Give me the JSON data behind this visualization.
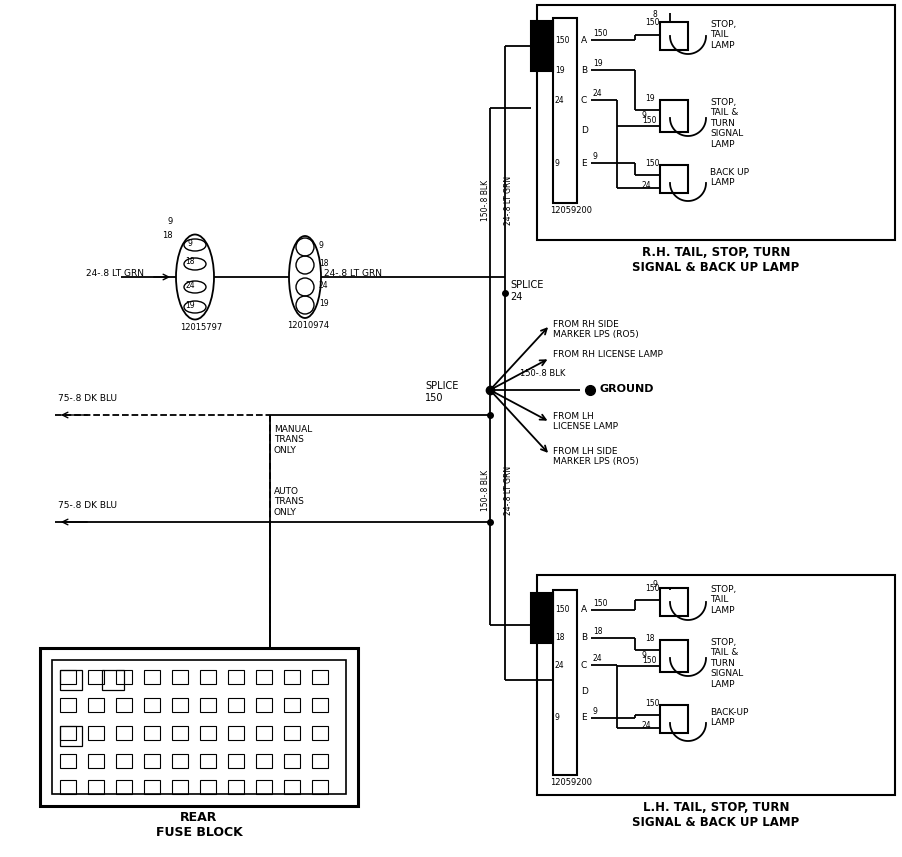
{
  "bg_color": "#ffffff",
  "rh_label": "R.H. TAIL, STOP, TURN\nSIGNAL & BACK UP LAMP",
  "lh_label": "L.H. TAIL, STOP, TURN\nSIGNAL & BACK UP LAMP",
  "fuse_label": "REAR\nFUSE BLOCK",
  "connector1_id": "12015797",
  "connector2_id": "12010974",
  "connector3_id": "12059200",
  "splice24_label": "SPLICE\n24",
  "splice150_label": "SPLICE\n150",
  "ground_label": "GROUND",
  "wire_blk": "150-.8 BLK",
  "wire_grn": "24-.8 LT GRN",
  "wire_blu": "75-.8 DK BLU",
  "manual_trans": "MANUAL\nTRANS\nONLY",
  "auto_trans": "AUTO\nTRANS\nONLY",
  "from_rh_side": "FROM RH SIDE\nMARKER LPS (RO5)",
  "from_rh_license": "FROM RH LICENSE LAMP",
  "from_lh_license": "FROM LH\nLICENSE LAMP",
  "from_lh_side": "FROM LH SIDE\nMARKER LPS (RO5)",
  "rh_stop_tail": "STOP,\nTAIL\nLAMP",
  "rh_stop_tail_turn": "STOP,\nTAIL &\nTURN\nSIGNAL\nLAMP",
  "rh_backup": "BACK UP\nLAMP",
  "lh_stop_tail": "STOP,\nTAIL\nLAMP",
  "lh_stop_tail_turn": "STOP,\nTAIL &\nTURN\nSIGNAL\nLAMP",
  "lh_backup": "BACK-UP\nLAMP",
  "rh_pins": [
    "150",
    "19",
    "24",
    "",
    "9"
  ],
  "lh_pins": [
    "150",
    "18",
    "24",
    "",
    "9"
  ],
  "pin_labels": [
    "A",
    "B",
    "C",
    "D",
    "E"
  ],
  "rh_wire_labels": [
    "150",
    "19",
    "24",
    "9"
  ],
  "lh_wire_labels": [
    "150",
    "18",
    "24",
    "9"
  ]
}
